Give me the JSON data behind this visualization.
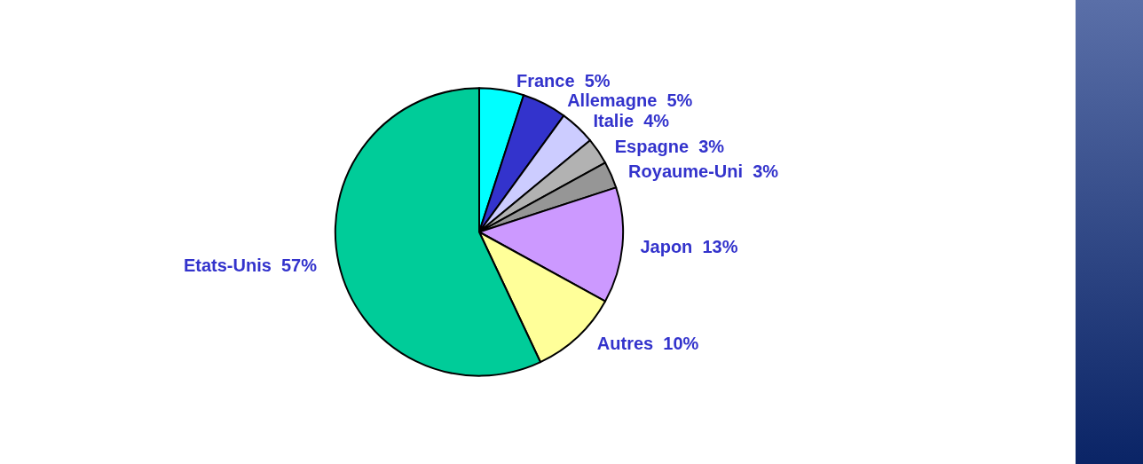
{
  "chart_data": {
    "type": "pie",
    "categories": [
      "France",
      "Allemagne",
      "Italie",
      "Espagne",
      "Royaume-Uni",
      "Japon",
      "Autres",
      "Etats-Unis"
    ],
    "values": [
      5,
      5,
      4,
      3,
      3,
      13,
      10,
      57
    ],
    "colors": [
      "#00ffff",
      "#3333cc",
      "#ccccff",
      "#b2b2b2",
      "#969696",
      "#cc99ff",
      "#ffff99",
      "#00cc99"
    ],
    "legend": false,
    "value_labels": [
      "5%",
      "5%",
      "4%",
      "3%",
      "3%",
      "13%",
      "10%",
      "57%"
    ]
  }
}
